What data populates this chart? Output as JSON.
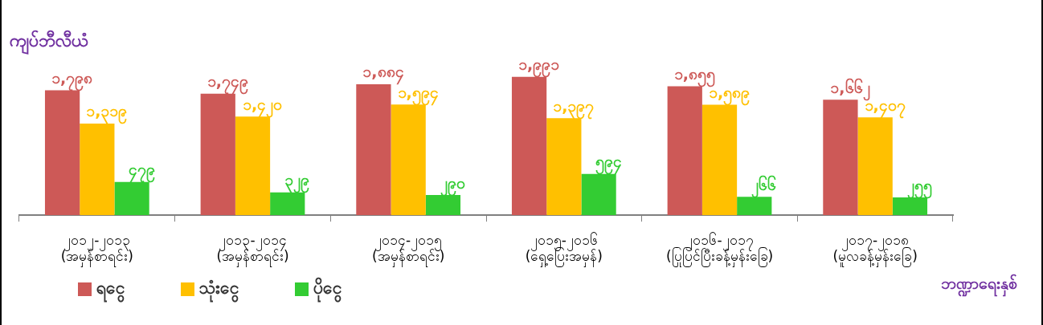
{
  "chart_data": {
    "type": "bar",
    "ylabel": "ကျပ်ဘီလီယံ",
    "xlabel": "ဘဏ္ဍာရေးနှစ်",
    "categories": [
      "၂၀၁၂-၂၀၁၃\n(အမှန်စာရင်း)",
      "၂၀၁၃-၂၀၁၄\n(အမှန်စာရင်း)",
      "၂၀၁၄-၂၀၁၅\n(အမှန်စာရင်း)",
      "၂၀၁၅-၂၀၁၆\n(ရှေ့ပြေးအမှန်)",
      "၂၀၁၆-၂၀၁၇\n(ပြုပြင်ပြီးခန့်မှန်းခြေ)",
      "၂၀၁၇-၂၀၁၈\n(မူလခန့်မှန်းခြေ)"
    ],
    "series": [
      {
        "name": "ရငွေ",
        "color": "#cd5957",
        "values": [
          1798,
          1749,
          1884,
          1991,
          1855,
          1662
        ],
        "value_labels": [
          "၁,၇၉၈",
          "၁,၇၄၉",
          "၁,၈၈၄",
          "၁,၉၉၁",
          "၁,၈၅၅",
          "၁,၆၆၂"
        ]
      },
      {
        "name": "သုံးငွေ",
        "color": "#ffc000",
        "values": [
          1319,
          1420,
          1594,
          1397,
          1589,
          1407
        ],
        "value_labels": [
          "၁,၃၁၉",
          "၁,၄၂၀",
          "၁,၅၉၄",
          "၁,၃၉၇",
          "၁,၅၈၉",
          "၁,၄၀၇"
        ]
      },
      {
        "name": "ပိုငွေ",
        "color": "#33cc33",
        "values": [
          479,
          329,
          290,
          594,
          266,
          255
        ],
        "value_labels": [
          "၄၇၉",
          "၃၂၉",
          "၂၉၀",
          "၅၉၄",
          "၂၆၆",
          "၂၅၅"
        ]
      }
    ],
    "legend": "bottom left"
  }
}
